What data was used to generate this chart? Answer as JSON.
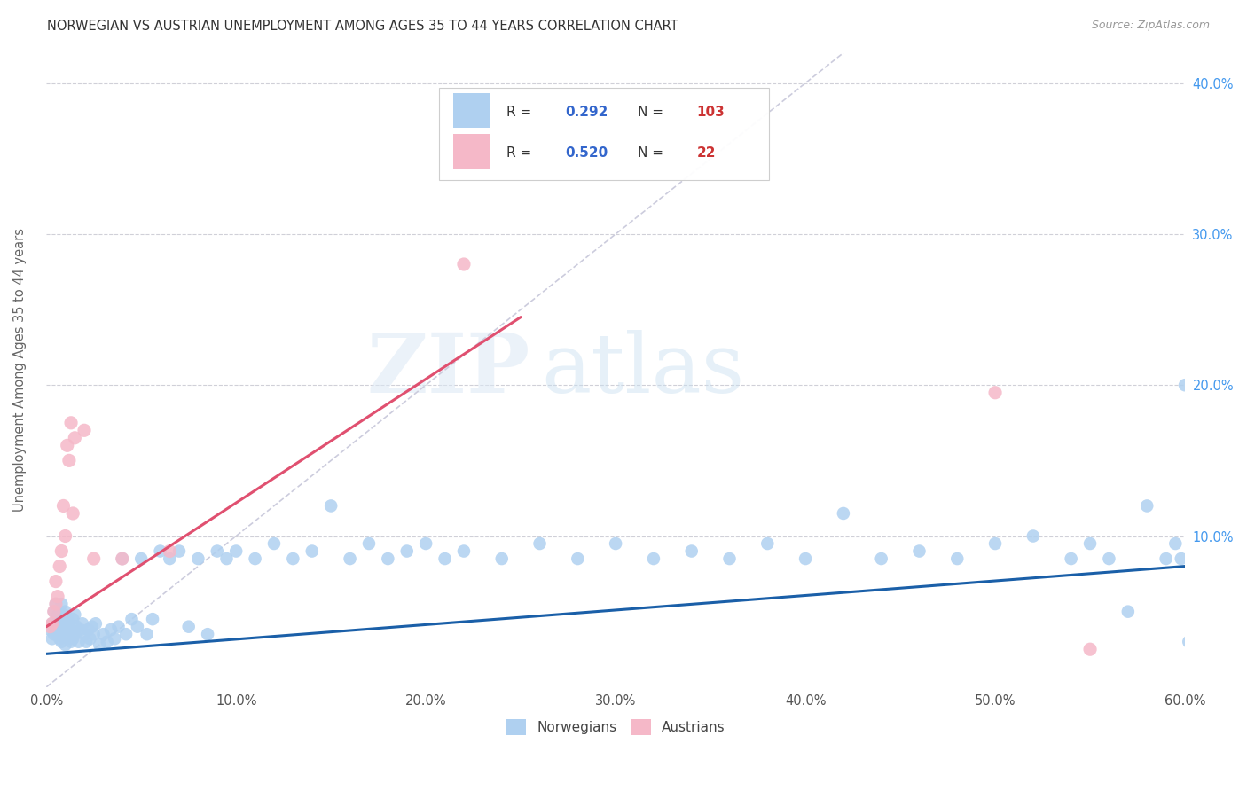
{
  "title": "NORWEGIAN VS AUSTRIAN UNEMPLOYMENT AMONG AGES 35 TO 44 YEARS CORRELATION CHART",
  "source": "Source: ZipAtlas.com",
  "ylabel": "Unemployment Among Ages 35 to 44 years",
  "xlim": [
    0.0,
    0.6
  ],
  "ylim": [
    0.0,
    0.42
  ],
  "R_norwegian": 0.292,
  "N_norwegian": 103,
  "R_austrian": 0.52,
  "N_austrian": 22,
  "color_norwegian": "#afd0f0",
  "color_austrian": "#f5b8c8",
  "line_color_norwegian": "#1a5fa8",
  "line_color_austrian": "#e05070",
  "trendline_dashed_color": "#ccccdd",
  "background_color": "#ffffff",
  "watermark_zip": "ZIP",
  "watermark_atlas": "atlas",
  "legend_norwegian": "Norwegians",
  "legend_austrian": "Austrians",
  "nor_x": [
    0.002,
    0.003,
    0.003,
    0.004,
    0.004,
    0.005,
    0.005,
    0.005,
    0.006,
    0.006,
    0.006,
    0.007,
    0.007,
    0.007,
    0.008,
    0.008,
    0.008,
    0.009,
    0.009,
    0.009,
    0.01,
    0.01,
    0.01,
    0.011,
    0.011,
    0.012,
    0.012,
    0.013,
    0.013,
    0.014,
    0.014,
    0.015,
    0.015,
    0.016,
    0.017,
    0.018,
    0.019,
    0.02,
    0.021,
    0.022,
    0.023,
    0.024,
    0.025,
    0.026,
    0.028,
    0.03,
    0.032,
    0.034,
    0.036,
    0.038,
    0.04,
    0.042,
    0.045,
    0.048,
    0.05,
    0.053,
    0.056,
    0.06,
    0.065,
    0.07,
    0.075,
    0.08,
    0.085,
    0.09,
    0.095,
    0.1,
    0.11,
    0.12,
    0.13,
    0.14,
    0.15,
    0.16,
    0.17,
    0.18,
    0.19,
    0.2,
    0.21,
    0.22,
    0.24,
    0.26,
    0.28,
    0.3,
    0.32,
    0.34,
    0.36,
    0.38,
    0.4,
    0.42,
    0.44,
    0.46,
    0.48,
    0.5,
    0.52,
    0.54,
    0.55,
    0.56,
    0.57,
    0.58,
    0.59,
    0.595,
    0.598,
    0.6,
    0.602
  ],
  "nor_y": [
    0.038,
    0.042,
    0.032,
    0.05,
    0.035,
    0.04,
    0.038,
    0.055,
    0.042,
    0.035,
    0.048,
    0.04,
    0.032,
    0.045,
    0.038,
    0.03,
    0.055,
    0.042,
    0.035,
    0.048,
    0.038,
    0.05,
    0.028,
    0.04,
    0.045,
    0.035,
    0.042,
    0.038,
    0.03,
    0.045,
    0.032,
    0.048,
    0.035,
    0.04,
    0.03,
    0.038,
    0.042,
    0.035,
    0.03,
    0.038,
    0.032,
    0.04,
    0.035,
    0.042,
    0.028,
    0.035,
    0.03,
    0.038,
    0.032,
    0.04,
    0.085,
    0.035,
    0.045,
    0.04,
    0.085,
    0.035,
    0.045,
    0.09,
    0.085,
    0.09,
    0.04,
    0.085,
    0.035,
    0.09,
    0.085,
    0.09,
    0.085,
    0.095,
    0.085,
    0.09,
    0.12,
    0.085,
    0.095,
    0.085,
    0.09,
    0.095,
    0.085,
    0.09,
    0.085,
    0.095,
    0.085,
    0.095,
    0.085,
    0.09,
    0.085,
    0.095,
    0.085,
    0.115,
    0.085,
    0.09,
    0.085,
    0.095,
    0.1,
    0.085,
    0.095,
    0.085,
    0.05,
    0.12,
    0.085,
    0.095,
    0.085,
    0.2,
    0.03
  ],
  "aut_x": [
    0.002,
    0.003,
    0.004,
    0.005,
    0.005,
    0.006,
    0.007,
    0.008,
    0.009,
    0.01,
    0.011,
    0.012,
    0.013,
    0.014,
    0.015,
    0.02,
    0.025,
    0.04,
    0.065,
    0.22,
    0.5,
    0.55
  ],
  "aut_y": [
    0.04,
    0.042,
    0.05,
    0.055,
    0.07,
    0.06,
    0.08,
    0.09,
    0.12,
    0.1,
    0.16,
    0.15,
    0.175,
    0.115,
    0.165,
    0.17,
    0.085,
    0.085,
    0.09,
    0.28,
    0.195,
    0.025
  ]
}
